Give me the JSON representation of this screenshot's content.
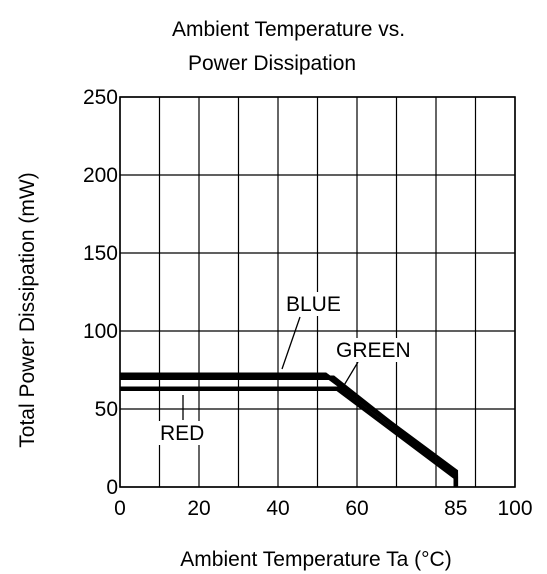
{
  "chart_data": {
    "type": "line",
    "title_lines": [
      "Ambient Temperature vs.",
      "Power Dissipation"
    ],
    "xlabel": "Ambient Temperature Ta (°C)",
    "ylabel": "Total Power Dissipation  (mW)",
    "xlim": [
      0,
      100
    ],
    "ylim": [
      0,
      250
    ],
    "grid": true,
    "x_ticks": [
      {
        "value": 0,
        "label": "0"
      },
      {
        "value": 20,
        "label": "20"
      },
      {
        "value": 40,
        "label": "40"
      },
      {
        "value": 60,
        "label": "60"
      },
      {
        "value": 85,
        "label": "85"
      },
      {
        "value": 100,
        "label": "100"
      }
    ],
    "y_ticks": [
      {
        "value": 0,
        "label": "0"
      },
      {
        "value": 50,
        "label": "50"
      },
      {
        "value": 100,
        "label": "100"
      },
      {
        "value": 150,
        "label": "150"
      },
      {
        "value": 200,
        "label": "200"
      },
      {
        "value": 250,
        "label": "250"
      }
    ],
    "x_grid": [
      0,
      10,
      20,
      30,
      40,
      50,
      60,
      70,
      80,
      90,
      100
    ],
    "y_grid": [
      0,
      50,
      100,
      150,
      200,
      250
    ],
    "series": [
      {
        "name": "BLUE",
        "color": "#000000",
        "points": [
          [
            0,
            72
          ],
          [
            52,
            72
          ],
          [
            85,
            10
          ],
          [
            85,
            0
          ]
        ]
      },
      {
        "name": "GREEN",
        "color": "#000000",
        "points": [
          [
            0,
            70
          ],
          [
            54,
            70
          ],
          [
            85,
            8
          ],
          [
            85,
            0
          ]
        ]
      },
      {
        "name": "RED",
        "color": "#000000",
        "points": [
          [
            0,
            63
          ],
          [
            55,
            63
          ],
          [
            85,
            6
          ],
          [
            85,
            0
          ]
        ]
      }
    ],
    "annotations": [
      {
        "text": "BLUE",
        "series": "BLUE"
      },
      {
        "text": "GREEN",
        "series": "GREEN"
      },
      {
        "text": "RED",
        "series": "RED"
      }
    ]
  }
}
